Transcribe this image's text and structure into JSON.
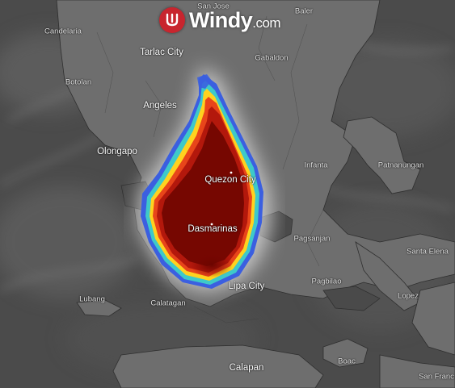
{
  "brand": {
    "name": "Windy",
    "suffix": ".com",
    "logo_icon": "windy-logo-icon",
    "logo_color": "#c8252e"
  },
  "places": [
    {
      "key": "san-jose",
      "name": "San Jose",
      "size": "small"
    },
    {
      "key": "baler",
      "name": "Baler",
      "size": "small"
    },
    {
      "key": "candelaria",
      "name": "Candelaria",
      "size": "small"
    },
    {
      "key": "tarlac-city",
      "name": "Tarlac City",
      "size": "big"
    },
    {
      "key": "gabaldon",
      "name": "Gabaldon",
      "size": "small"
    },
    {
      "key": "botolan",
      "name": "Botolan",
      "size": "small"
    },
    {
      "key": "angeles",
      "name": "Angeles",
      "size": "big"
    },
    {
      "key": "olongapo",
      "name": "Olongapo",
      "size": "big"
    },
    {
      "key": "quezon-city",
      "name": "Quezon City",
      "size": "big"
    },
    {
      "key": "infanta",
      "name": "Infanta",
      "size": "small"
    },
    {
      "key": "patnanungan",
      "name": "Patnanungan",
      "size": "small"
    },
    {
      "key": "dasmarinas",
      "name": "Dasmarinas",
      "size": "big"
    },
    {
      "key": "pagsanjan",
      "name": "Pagsanjan",
      "size": "small"
    },
    {
      "key": "santa-elena",
      "name": "Santa Elena",
      "size": "small"
    },
    {
      "key": "lipa-city",
      "name": "Lipa City",
      "size": "big"
    },
    {
      "key": "pagbilao",
      "name": "Pagbilao",
      "size": "small"
    },
    {
      "key": "lubang",
      "name": "Lubang",
      "size": "small"
    },
    {
      "key": "calatagan",
      "name": "Calatagan",
      "size": "small"
    },
    {
      "key": "lopez",
      "name": "Lopez",
      "size": "small"
    },
    {
      "key": "boac",
      "name": "Boac",
      "size": "small"
    },
    {
      "key": "calapan",
      "name": "Calapan",
      "size": "big"
    },
    {
      "key": "san-francisco",
      "name": "San Franc",
      "size": "small"
    }
  ],
  "overlay": {
    "colors": [
      "#3b5fe0",
      "#3ec9c9",
      "#ffd21f",
      "#e8451a",
      "#b3180c",
      "#6b0500"
    ]
  }
}
